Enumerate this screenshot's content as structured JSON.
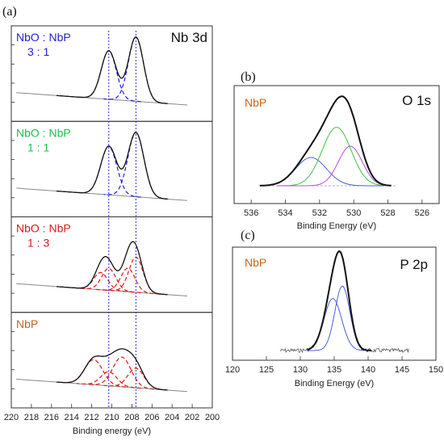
{
  "chart_data": [
    {
      "panel": "(a)",
      "type": "line",
      "title": "Nb 3d",
      "xlabel": "Binding energy (eV)",
      "xlim": [
        220,
        200
      ],
      "x_ticks": [
        "220",
        "218",
        "216",
        "214",
        "212",
        "210",
        "208",
        "206",
        "204",
        "202",
        "200"
      ],
      "reference_lines_eV": [
        210.3,
        207.6
      ],
      "subplots": [
        {
          "label_top": "NbO : NbP",
          "label_bottom": "3   :   1",
          "label_color": "#1f1fd0",
          "fit_color": "#1f1fd0",
          "components": [
            {
              "center": 210.3,
              "height": 0.62,
              "width": 0.75
            },
            {
              "center": 207.6,
              "height": 0.82,
              "width": 0.75
            }
          ],
          "show_title": true
        },
        {
          "label_top": "NbO : NbP",
          "label_bottom": "1   :   1",
          "label_color": "#1fbf4a",
          "fit_color": "#1f1fd0",
          "components": [
            {
              "center": 210.3,
              "height": 0.62,
              "width": 0.8
            },
            {
              "center": 207.6,
              "height": 0.82,
              "width": 0.8
            }
          ]
        },
        {
          "label_top": "NbO : NbP",
          "label_bottom": "1   :   3",
          "label_color": "#e01818",
          "fit_color": "#e01818",
          "components": [
            {
              "center": 211.1,
              "height": 0.22,
              "width": 0.7
            },
            {
              "center": 208.4,
              "height": 0.3,
              "width": 0.7
            },
            {
              "center": 210.3,
              "height": 0.28,
              "width": 0.7
            },
            {
              "center": 207.6,
              "height": 0.45,
              "width": 0.7
            }
          ]
        },
        {
          "label_top": "NbP",
          "label_bottom": "",
          "label_color": "#c8641e",
          "fit_color": "#e01818",
          "components": [
            {
              "center": 211.8,
              "height": 0.32,
              "width": 0.9
            },
            {
              "center": 209.0,
              "height": 0.38,
              "width": 0.9
            },
            {
              "center": 210.3,
              "height": 0.18,
              "width": 0.8
            },
            {
              "center": 207.6,
              "height": 0.25,
              "width": 0.8
            }
          ]
        }
      ]
    },
    {
      "panel": "(b)",
      "type": "line",
      "title": "O 1s",
      "label": "NbP",
      "label_color": "#c8641e",
      "xlabel": "Binding Energy (eV)",
      "xlim": [
        537,
        525
      ],
      "x_ticks": [
        "536",
        "534",
        "532",
        "530",
        "528",
        "526"
      ],
      "components": [
        {
          "center": 532.5,
          "height": 0.3,
          "width": 0.9,
          "color": "#4b5fd6"
        },
        {
          "center": 531.0,
          "height": 0.62,
          "width": 0.85,
          "color": "#3fbf3f"
        },
        {
          "center": 530.2,
          "height": 0.42,
          "width": 0.7,
          "color": "#b64fd8"
        }
      ]
    },
    {
      "panel": "(c)",
      "type": "line",
      "title": "P 2p",
      "label": "NbP",
      "label_color": "#c8641e",
      "xlabel": "Binding Energy (eV)",
      "xlim": [
        120,
        150
      ],
      "x_ticks": [
        "120",
        "125",
        "130",
        "135",
        "140",
        "145",
        "150"
      ],
      "components": [
        {
          "center": 134.8,
          "height": 0.5,
          "width": 1.3,
          "color": "#4b5fd6"
        },
        {
          "center": 136.2,
          "height": 0.62,
          "width": 1.1,
          "color": "#4b5fd6"
        }
      ]
    }
  ]
}
